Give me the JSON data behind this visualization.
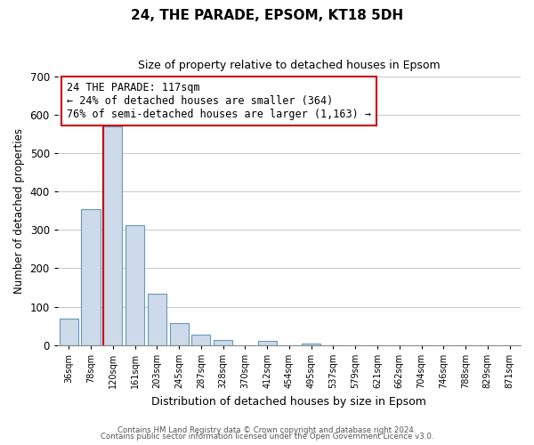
{
  "title": "24, THE PARADE, EPSOM, KT18 5DH",
  "subtitle": "Size of property relative to detached houses in Epsom",
  "xlabel": "Distribution of detached houses by size in Epsom",
  "ylabel": "Number of detached properties",
  "bar_color": "#ccdaea",
  "bar_edge_color": "#6699bb",
  "categories": [
    "36sqm",
    "78sqm",
    "120sqm",
    "161sqm",
    "203sqm",
    "245sqm",
    "287sqm",
    "328sqm",
    "370sqm",
    "412sqm",
    "454sqm",
    "495sqm",
    "537sqm",
    "579sqm",
    "621sqm",
    "662sqm",
    "704sqm",
    "746sqm",
    "788sqm",
    "829sqm",
    "871sqm"
  ],
  "values": [
    68,
    355,
    570,
    312,
    134,
    57,
    27,
    14,
    0,
    10,
    0,
    3,
    0,
    0,
    0,
    0,
    0,
    0,
    0,
    0,
    0
  ],
  "ylim": [
    0,
    700
  ],
  "yticks": [
    0,
    100,
    200,
    300,
    400,
    500,
    600,
    700
  ],
  "annotation_line1": "24 THE PARADE: 117sqm",
  "annotation_line2": "← 24% of detached houses are smaller (364)",
  "annotation_line3": "76% of semi-detached houses are larger (1,163) →",
  "annotation_box_color": "#ffffff",
  "annotation_box_edge": "#cc0000",
  "footer_line1": "Contains HM Land Registry data © Crown copyright and database right 2024.",
  "footer_line2": "Contains public sector information licensed under the Open Government Licence v3.0.",
  "background_color": "#ffffff",
  "grid_color": "#c8c8c8",
  "title_fontsize": 11,
  "subtitle_fontsize": 9
}
